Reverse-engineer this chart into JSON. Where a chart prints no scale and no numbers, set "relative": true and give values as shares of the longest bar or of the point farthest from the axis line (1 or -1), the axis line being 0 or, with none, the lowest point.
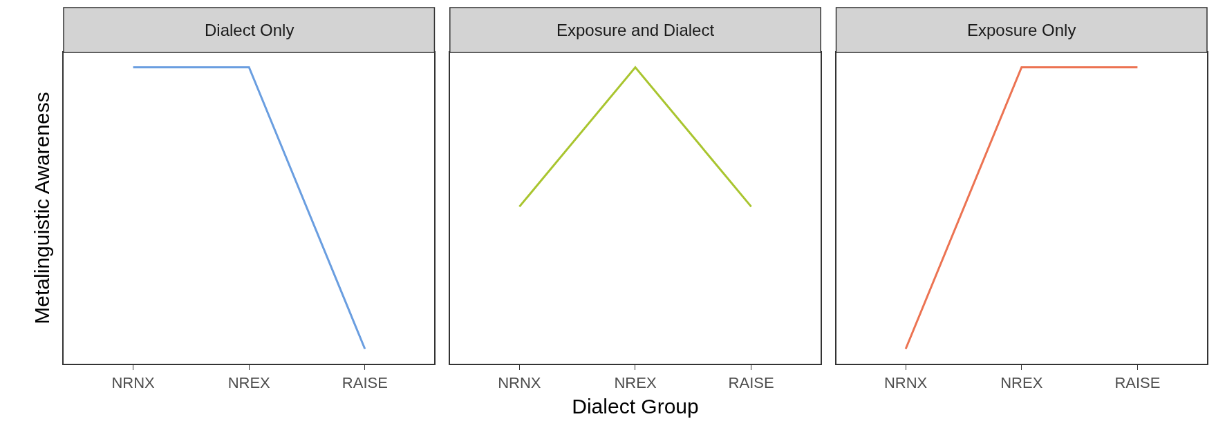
{
  "chart_data": [
    {
      "type": "line",
      "title": "Dialect Only",
      "ylabel": "Metalinguistic Awareness",
      "categories": [
        "NRNX",
        "NREX",
        "RAISE"
      ],
      "values": [
        1,
        1,
        0.05
      ],
      "color": "#6a9ee0",
      "relative": true
    },
    {
      "type": "line",
      "title": "Exposure and Dialect",
      "xlabel": "Dialect Group",
      "categories": [
        "NRNX",
        "NREX",
        "RAISE"
      ],
      "values": [
        0.53,
        1,
        0.53
      ],
      "color": "#a9c52f",
      "relative": true
    },
    {
      "type": "line",
      "title": "Exposure Only",
      "categories": [
        "NRNX",
        "NREX",
        "RAISE"
      ],
      "values": [
        0.05,
        1,
        1
      ],
      "color": "#ec7352",
      "relative": true
    }
  ]
}
